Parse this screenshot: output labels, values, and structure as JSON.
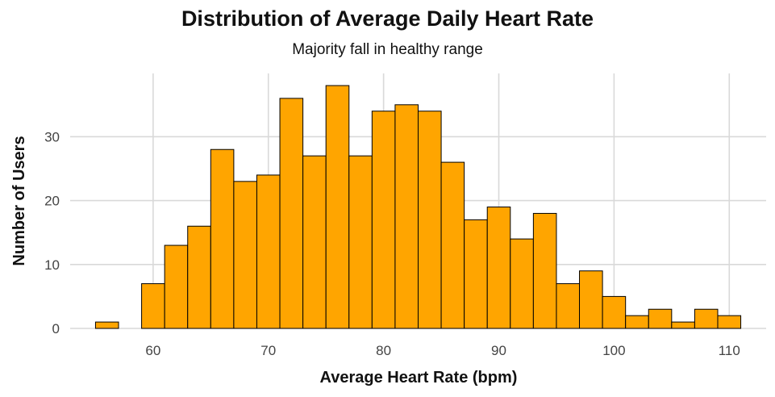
{
  "chart_data": {
    "type": "bar",
    "title": "Distribution of Average Daily Heart Rate",
    "subtitle": "Majority fall in healthy range",
    "xlabel": "Average Heart Rate (bpm)",
    "ylabel": "Number of Users",
    "xlim": [
      52.8,
      113.2
    ],
    "ylim": [
      0,
      39.9
    ],
    "x_ticks": [
      60,
      70,
      80,
      90,
      100,
      110
    ],
    "y_ticks": [
      0,
      10,
      20,
      30
    ],
    "grid": true,
    "bar_color": "#FFA500",
    "bar_edge_color": "#000000",
    "grid_color": "#d9d9d9",
    "bins": [
      {
        "x0": 55,
        "x1": 57,
        "count": 1
      },
      {
        "x0": 57,
        "x1": 59,
        "count": 0
      },
      {
        "x0": 59,
        "x1": 61,
        "count": 7
      },
      {
        "x0": 61,
        "x1": 63,
        "count": 13
      },
      {
        "x0": 63,
        "x1": 65,
        "count": 16
      },
      {
        "x0": 65,
        "x1": 67,
        "count": 28
      },
      {
        "x0": 67,
        "x1": 69,
        "count": 23
      },
      {
        "x0": 69,
        "x1": 71,
        "count": 24
      },
      {
        "x0": 71,
        "x1": 73,
        "count": 36
      },
      {
        "x0": 73,
        "x1": 75,
        "count": 27
      },
      {
        "x0": 75,
        "x1": 77,
        "count": 38
      },
      {
        "x0": 77,
        "x1": 79,
        "count": 27
      },
      {
        "x0": 79,
        "x1": 81,
        "count": 34
      },
      {
        "x0": 81,
        "x1": 83,
        "count": 35
      },
      {
        "x0": 83,
        "x1": 85,
        "count": 34
      },
      {
        "x0": 85,
        "x1": 87,
        "count": 26
      },
      {
        "x0": 87,
        "x1": 89,
        "count": 17
      },
      {
        "x0": 89,
        "x1": 91,
        "count": 19
      },
      {
        "x0": 91,
        "x1": 93,
        "count": 14
      },
      {
        "x0": 93,
        "x1": 95,
        "count": 18
      },
      {
        "x0": 95,
        "x1": 97,
        "count": 7
      },
      {
        "x0": 97,
        "x1": 99,
        "count": 9
      },
      {
        "x0": 99,
        "x1": 101,
        "count": 5
      },
      {
        "x0": 101,
        "x1": 103,
        "count": 2
      },
      {
        "x0": 103,
        "x1": 105,
        "count": 3
      },
      {
        "x0": 105,
        "x1": 107,
        "count": 1
      },
      {
        "x0": 107,
        "x1": 109,
        "count": 3
      },
      {
        "x0": 109,
        "x1": 111,
        "count": 2
      }
    ]
  }
}
